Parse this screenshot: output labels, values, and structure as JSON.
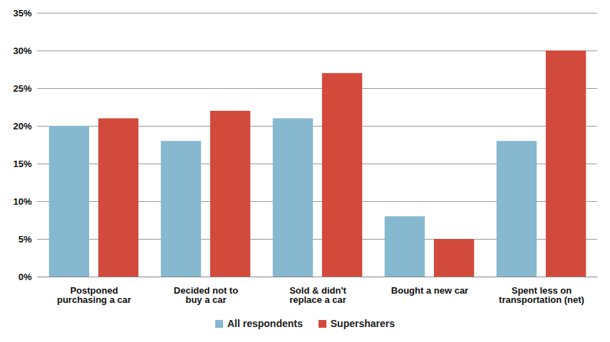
{
  "chart_data": {
    "type": "bar",
    "categories": [
      "Postponed\npurchasing a car",
      "Decided not to\nbuy a car",
      "Sold & didn't\nreplace a car",
      "Bought a new car",
      "Spent less on\ntransportation (net)"
    ],
    "series": [
      {
        "name": "All respondents",
        "color": "#86b8d0",
        "values": [
          20,
          18,
          21,
          8,
          18
        ]
      },
      {
        "name": "Supersharers",
        "color": "#d24a3c",
        "values": [
          21,
          22,
          27,
          5,
          30
        ]
      }
    ],
    "ylim": [
      0,
      35
    ],
    "yticks": [
      {
        "value": 0,
        "label": "0%"
      },
      {
        "value": 5,
        "label": "5%"
      },
      {
        "value": 10,
        "label": "10%"
      },
      {
        "value": 15,
        "label": "15%"
      },
      {
        "value": 20,
        "label": "20%"
      },
      {
        "value": 25,
        "label": "25%"
      },
      {
        "value": 30,
        "label": "30%"
      },
      {
        "value": 35,
        "label": "35%"
      }
    ],
    "grid": true,
    "legend": "bottom"
  }
}
